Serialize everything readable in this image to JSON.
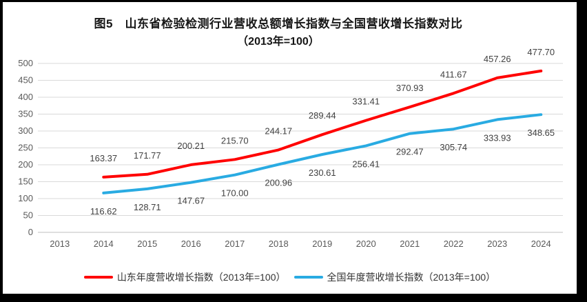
{
  "frame": {
    "border_color": "#000000",
    "background": "#ffffff"
  },
  "chart_data": {
    "type": "line",
    "title": "图5　山东省检验检测行业营收总额增长指数与全国营收增长指数对比",
    "subtitle": "（2013年=100）",
    "categories": [
      "2013",
      "2014",
      "2015",
      "2016",
      "2017",
      "2018",
      "2019",
      "2020",
      "2021",
      "2022",
      "2023",
      "2024"
    ],
    "series": [
      {
        "name": "山东年度营收增长指数（2013年=100）",
        "color": "#FF0000",
        "label_position": "above",
        "values": [
          null,
          163.37,
          171.77,
          200.21,
          215.7,
          244.17,
          289.44,
          331.41,
          370.93,
          411.67,
          457.26,
          477.7
        ]
      },
      {
        "name": "全国年度营收增长指数（2013年=100）",
        "color": "#29ABE2",
        "label_position": "below",
        "values": [
          null,
          116.62,
          128.71,
          147.67,
          170.0,
          200.96,
          230.61,
          256.41,
          292.47,
          305.74,
          333.93,
          348.65
        ]
      }
    ],
    "xlabel": "",
    "ylabel": "",
    "ylim": [
      0,
      500
    ],
    "ytick_step": 50,
    "grid": true,
    "legend_position": "bottom",
    "gridline_color": "#D9D9D9",
    "axis_line_color": "#BFBFBF",
    "axis_text_color": "#595959",
    "label_text_color": "#404040"
  }
}
